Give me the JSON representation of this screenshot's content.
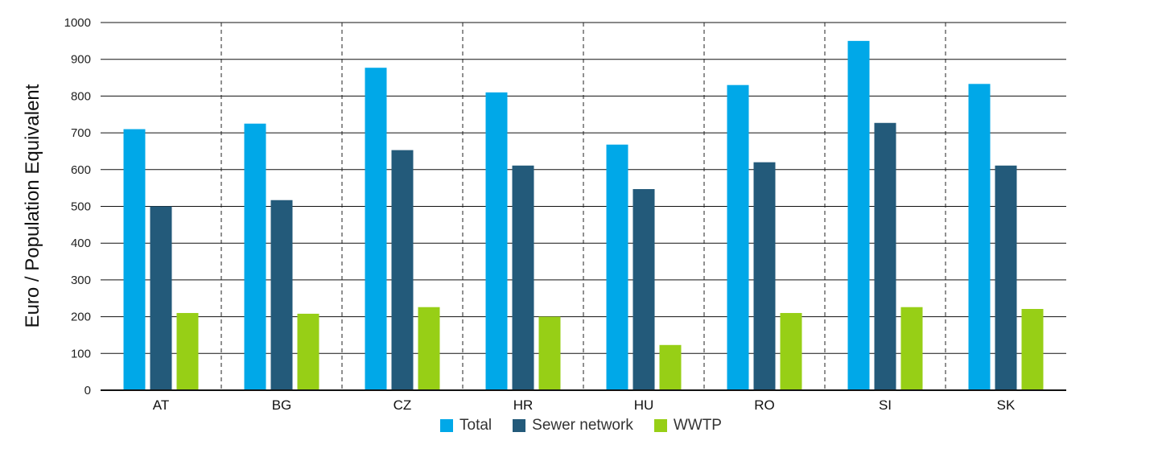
{
  "chart_data": {
    "type": "bar",
    "title": "",
    "xlabel": "",
    "ylabel": "Euro / Population Equivalent",
    "ylim": [
      0,
      1000
    ],
    "yticks": [
      0,
      100,
      200,
      300,
      400,
      500,
      600,
      700,
      800,
      900,
      1000
    ],
    "grid": "horizontal",
    "legend_position": "bottom",
    "categories": [
      "AT",
      "BG",
      "CZ",
      "HR",
      "HU",
      "RO",
      "SI",
      "SK"
    ],
    "series": [
      {
        "name": "Total",
        "color": "#00a8e8",
        "values": [
          710,
          725,
          877,
          810,
          668,
          830,
          950,
          833
        ]
      },
      {
        "name": "Sewer network",
        "color": "#235a7a",
        "values": [
          500,
          517,
          653,
          611,
          547,
          620,
          727,
          611
        ]
      },
      {
        "name": "WWTP",
        "color": "#97cf16",
        "values": [
          210,
          208,
          226,
          200,
          123,
          210,
          226,
          221
        ]
      }
    ]
  }
}
